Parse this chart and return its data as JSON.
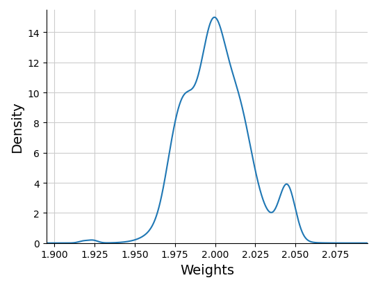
{
  "xlabel": "Weights",
  "ylabel": "Density",
  "xlim": [
    1.895,
    2.095
  ],
  "ylim": [
    -0.05,
    15.5
  ],
  "line_color": "#1f77b4",
  "line_width": 1.5,
  "grid": true,
  "grid_color": "#cccccc",
  "background_color": "#ffffff",
  "xticks": [
    1.9,
    1.925,
    1.95,
    1.975,
    2.0,
    2.025,
    2.05,
    2.075
  ],
  "yticks": [
    0,
    2,
    4,
    6,
    8,
    10,
    12,
    14
  ],
  "xlabel_fontsize": 14,
  "ylabel_fontsize": 14,
  "tick_fontsize": 10
}
